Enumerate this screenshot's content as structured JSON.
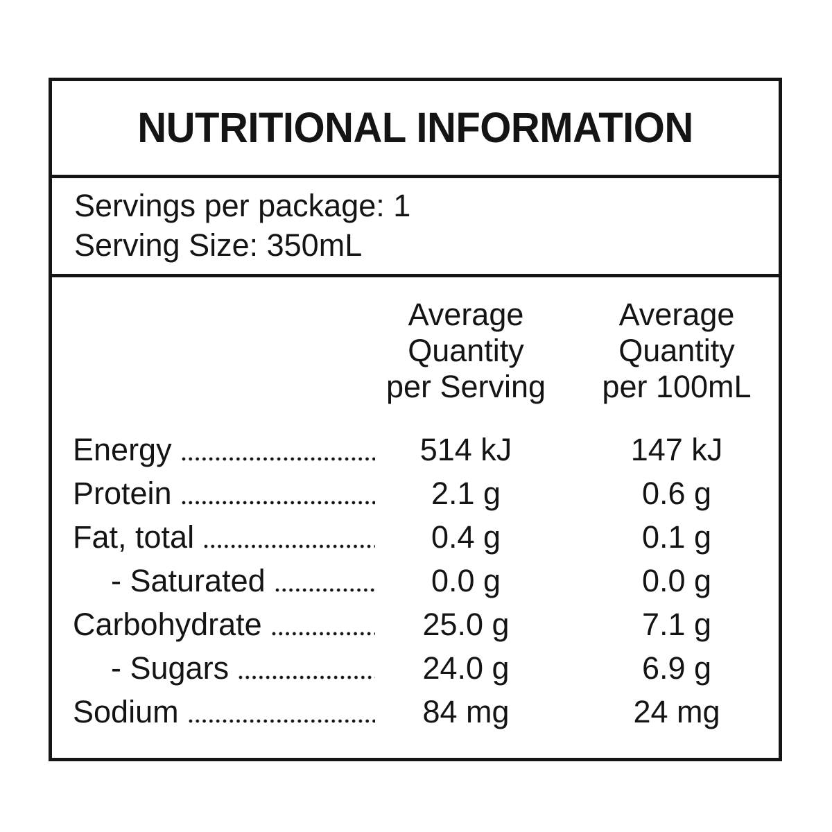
{
  "panel": {
    "title": "NUTRITIONAL INFORMATION",
    "servings_per_package": "Servings per package: 1",
    "serving_size": "Serving Size: 350mL",
    "columns": {
      "per_serving": "Average\nQuantity\nper Serving",
      "per_100ml": "Average\nQuantity\nper 100mL"
    },
    "rows": [
      {
        "name": "Energy",
        "sub": false,
        "per_serving": "514 kJ",
        "per_100ml": "147 kJ"
      },
      {
        "name": "Protein",
        "sub": false,
        "per_serving": "2.1 g",
        "per_100ml": "0.6 g"
      },
      {
        "name": "Fat, total",
        "sub": false,
        "per_serving": "0.4 g",
        "per_100ml": "0.1 g"
      },
      {
        "name": "- Saturated",
        "sub": true,
        "per_serving": "0.0 g",
        "per_100ml": "0.0 g"
      },
      {
        "name": "Carbohydrate",
        "sub": false,
        "per_serving": "25.0 g",
        "per_100ml": "7.1 g"
      },
      {
        "name": "- Sugars",
        "sub": true,
        "per_serving": "24.0 g",
        "per_100ml": "6.9 g"
      },
      {
        "name": "Sodium",
        "sub": false,
        "per_serving": "84 mg",
        "per_100ml": "24 mg"
      }
    ],
    "colors": {
      "text": "#141414",
      "border": "#141414",
      "background": "#ffffff"
    }
  }
}
